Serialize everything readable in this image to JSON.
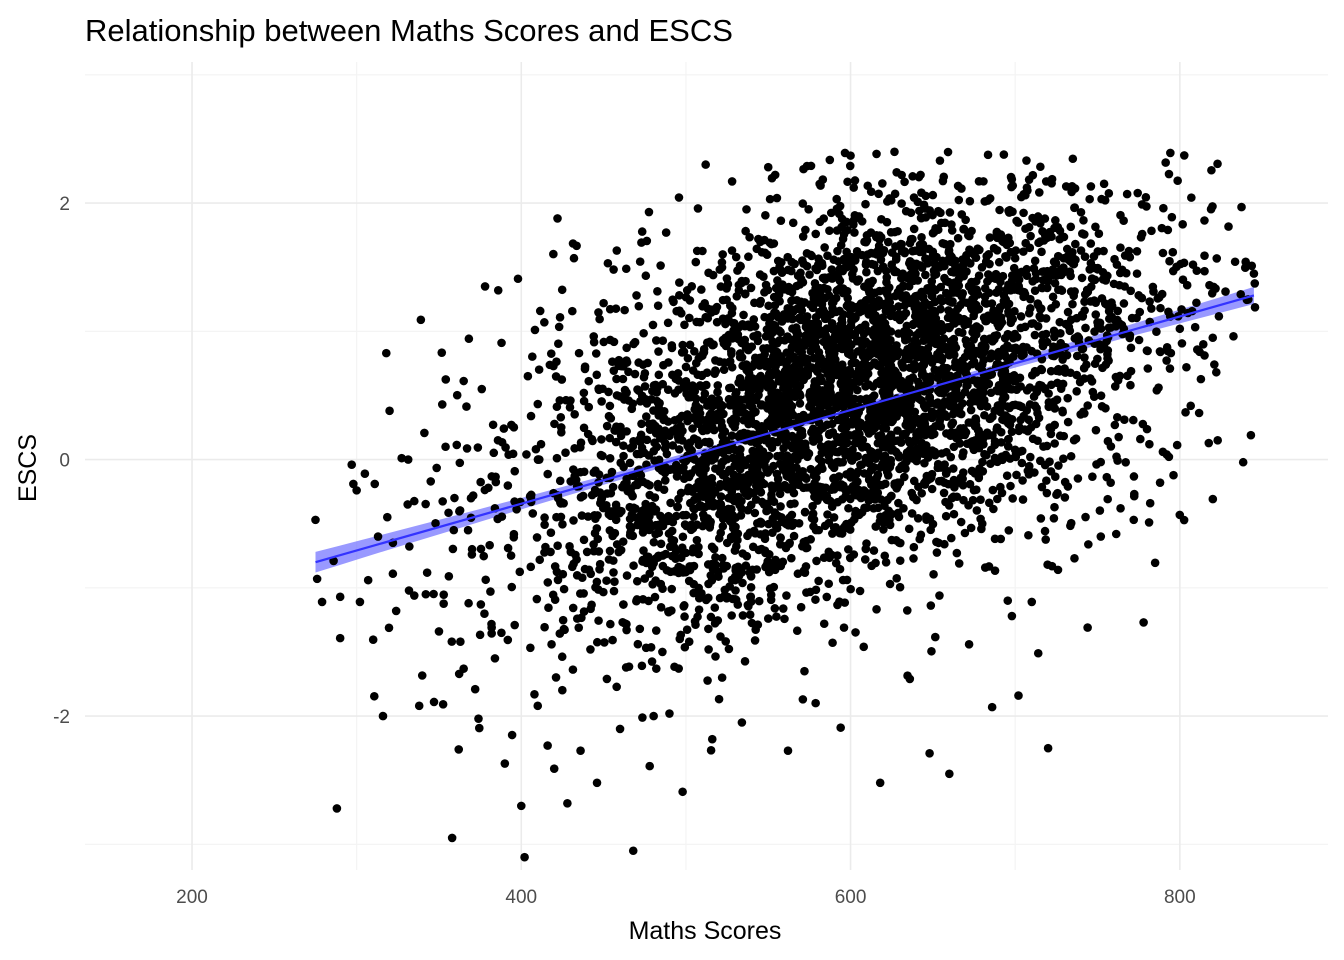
{
  "chart_data": {
    "type": "scatter",
    "title": "Relationship between Maths Scores and ESCS",
    "xlabel": "Maths Scores",
    "ylabel": "ESCS",
    "xlim": [
      135,
      890
    ],
    "ylim": [
      -3.2,
      3.1
    ],
    "x_ticks": [
      200,
      400,
      600,
      800
    ],
    "y_ticks": [
      -2,
      0,
      2
    ],
    "grid": true,
    "colors": {
      "points": "#000000",
      "trend": "#3333ff",
      "band": "#7777ff"
    },
    "trend_line": {
      "x": [
        275,
        845
      ],
      "y": [
        -0.8,
        1.28
      ],
      "method": "linear"
    },
    "series": [
      {
        "points": [
          [
            275,
            -0.47
          ],
          [
            276,
            -0.93
          ],
          [
            279,
            -1.11
          ],
          [
            286,
            -0.79
          ],
          [
            288,
            -2.72
          ],
          [
            290,
            -1.07
          ],
          [
            297,
            -0.04
          ],
          [
            298,
            -0.19
          ],
          [
            300,
            -0.24
          ],
          [
            302,
            -1.11
          ],
          [
            305,
            -0.11
          ],
          [
            307,
            -0.94
          ],
          [
            311,
            -0.19
          ],
          [
            313,
            -0.6
          ],
          [
            316,
            -2.0
          ],
          [
            318,
            0.83
          ],
          [
            320,
            0.38
          ],
          [
            322,
            -0.89
          ],
          [
            324,
            -1.18
          ],
          [
            331,
            -0.35
          ],
          [
            335,
            -1.06
          ],
          [
            338,
            -1.92
          ],
          [
            339,
            1.09
          ],
          [
            342,
            -1.05
          ],
          [
            345,
            -0.17
          ],
          [
            347,
            -1.89
          ],
          [
            350,
            -1.34
          ],
          [
            352,
            0.43
          ],
          [
            354,
            0.1
          ],
          [
            356,
            -0.91
          ],
          [
            358,
            -2.95
          ],
          [
            359,
            -0.55
          ],
          [
            362,
            -2.26
          ],
          [
            363,
            -1.42
          ],
          [
            365,
            -1.63
          ],
          [
            368,
            -1.12
          ],
          [
            370,
            -0.74
          ],
          [
            372,
            -1.79
          ],
          [
            374,
            -2.02
          ],
          [
            376,
            0.55
          ],
          [
            378,
            1.35
          ],
          [
            380,
            -0.22
          ],
          [
            382,
            -1.31
          ],
          [
            384,
            -1.55
          ],
          [
            386,
            1.32
          ],
          [
            388,
            0.91
          ],
          [
            390,
            -2.37
          ],
          [
            392,
            -0.69
          ],
          [
            394,
            0.27
          ],
          [
            396,
            -1.29
          ],
          [
            398,
            1.41
          ],
          [
            400,
            -2.7
          ],
          [
            402,
            -3.1
          ],
          [
            404,
            0.65
          ],
          [
            406,
            -0.33
          ],
          [
            408,
            -1.83
          ],
          [
            410,
            -1.92
          ],
          [
            412,
            0.12
          ],
          [
            414,
            1.07
          ],
          [
            416,
            -2.23
          ],
          [
            418,
            -0.57
          ],
          [
            420,
            -2.41
          ],
          [
            422,
            1.88
          ],
          [
            424,
            0.33
          ],
          [
            426,
            -1.01
          ],
          [
            428,
            -2.68
          ],
          [
            430,
            -0.17
          ],
          [
            432,
            1.57
          ],
          [
            434,
            -1.24
          ],
          [
            436,
            -2.27
          ],
          [
            438,
            0.52
          ],
          [
            440,
            -0.72
          ],
          [
            442,
            -1.48
          ],
          [
            444,
            0.96
          ],
          [
            446,
            -2.52
          ],
          [
            448,
            -0.34
          ],
          [
            450,
            1.22
          ],
          [
            452,
            -1.71
          ],
          [
            454,
            0.01
          ],
          [
            456,
            -0.88
          ],
          [
            458,
            1.63
          ],
          [
            460,
            -2.1
          ],
          [
            462,
            -1.13
          ],
          [
            464,
            0.22
          ],
          [
            466,
            -0.52
          ],
          [
            468,
            -3.05
          ],
          [
            470,
            1.28
          ],
          [
            472,
            -1.32
          ],
          [
            474,
            0.74
          ],
          [
            476,
            -0.04
          ],
          [
            478,
            -2.39
          ],
          [
            480,
            1.05
          ],
          [
            482,
            -1.63
          ],
          [
            484,
            0.44
          ],
          [
            486,
            -0.83
          ],
          [
            488,
            1.77
          ],
          [
            490,
            -1.98
          ],
          [
            492,
            0.11
          ],
          [
            494,
            -0.71
          ],
          [
            496,
            1.38
          ],
          [
            498,
            -2.59
          ],
          [
            500,
            0.59
          ],
          [
            502,
            -1.42
          ],
          [
            504,
            -0.25
          ],
          [
            506,
            1.54
          ],
          [
            508,
            -1.17
          ],
          [
            510,
            0.81
          ],
          [
            512,
            2.3
          ],
          [
            514,
            -0.49
          ],
          [
            516,
            -2.18
          ],
          [
            518,
            1.16
          ],
          [
            520,
            0.34
          ],
          [
            522,
            -1.7
          ],
          [
            524,
            0.95
          ],
          [
            526,
            -0.3
          ],
          [
            528,
            1.63
          ],
          [
            530,
            -0.94
          ],
          [
            532,
            0.6
          ],
          [
            534,
            -2.05
          ],
          [
            536,
            1.29
          ],
          [
            538,
            -0.12
          ],
          [
            540,
            0.88
          ],
          [
            542,
            -1.41
          ],
          [
            544,
            1.72
          ],
          [
            546,
            0.26
          ],
          [
            548,
            -0.71
          ],
          [
            550,
            2.28
          ],
          [
            552,
            0.52
          ],
          [
            554,
            -1.16
          ],
          [
            556,
            1.11
          ],
          [
            558,
            -0.45
          ],
          [
            560,
            0.93
          ],
          [
            562,
            -2.27
          ],
          [
            564,
            1.47
          ],
          [
            566,
            0.15
          ],
          [
            568,
            -0.89
          ],
          [
            570,
            1.23
          ],
          [
            572,
            -1.65
          ],
          [
            574,
            0.71
          ],
          [
            576,
            2.29
          ],
          [
            578,
            -0.29
          ],
          [
            580,
            1.04
          ],
          [
            582,
            0.36
          ],
          [
            584,
            -1.28
          ],
          [
            586,
            1.59
          ],
          [
            588,
            0.62
          ],
          [
            590,
            -0.53
          ],
          [
            592,
            1.32
          ],
          [
            594,
            -2.09
          ],
          [
            596,
            0.88
          ],
          [
            598,
            0.13
          ],
          [
            600,
            2.37
          ],
          [
            602,
            -0.74
          ],
          [
            604,
            1.19
          ],
          [
            606,
            0.47
          ],
          [
            608,
            -1.46
          ],
          [
            610,
            1.71
          ],
          [
            612,
            0.29
          ],
          [
            614,
            -0.38
          ],
          [
            616,
            1.05
          ],
          [
            618,
            -2.52
          ],
          [
            620,
            0.79
          ],
          [
            622,
            1.42
          ],
          [
            624,
            -0.97
          ],
          [
            626,
            0.58
          ],
          [
            628,
            2.24
          ],
          [
            630,
            -0.18
          ],
          [
            632,
            1.13
          ],
          [
            634,
            0.35
          ],
          [
            636,
            -1.71
          ],
          [
            638,
            1.49
          ],
          [
            640,
            0.86
          ],
          [
            642,
            -0.62
          ],
          [
            644,
            1.27
          ],
          [
            646,
            0.11
          ],
          [
            648,
            -2.29
          ],
          [
            650,
            1.62
          ],
          [
            652,
            0.43
          ],
          [
            654,
            -1.06
          ],
          [
            656,
            1.01
          ],
          [
            658,
            0.67
          ],
          [
            660,
            -2.45
          ],
          [
            662,
            1.35
          ],
          [
            664,
            0.21
          ],
          [
            666,
            -0.81
          ],
          [
            668,
            1.56
          ],
          [
            670,
            0.93
          ],
          [
            672,
            -1.44
          ],
          [
            674,
            1.18
          ],
          [
            676,
            0.32
          ],
          [
            678,
            2.17
          ],
          [
            680,
            -0.5
          ],
          [
            682,
            1.08
          ],
          [
            684,
            0.59
          ],
          [
            686,
            -1.93
          ],
          [
            688,
            1.41
          ],
          [
            690,
            0.74
          ],
          [
            692,
            -0.26
          ],
          [
            694,
            1.24
          ],
          [
            696,
            0.16
          ],
          [
            698,
            -1.22
          ],
          [
            700,
            1.57
          ],
          [
            702,
            -1.84
          ],
          [
            704,
            0.81
          ],
          [
            706,
            1.29
          ],
          [
            708,
            -0.59
          ],
          [
            710,
            1.06
          ],
          [
            712,
            0.42
          ],
          [
            714,
            -1.51
          ],
          [
            716,
            1.62
          ],
          [
            718,
            0.55
          ],
          [
            720,
            -2.25
          ],
          [
            722,
            1.18
          ],
          [
            724,
            0.27
          ],
          [
            726,
            -0.86
          ],
          [
            728,
            1.44
          ],
          [
            730,
            0.71
          ],
          [
            732,
            -0.21
          ],
          [
            734,
            1.31
          ],
          [
            736,
            -0.77
          ],
          [
            738,
            0.96
          ],
          [
            740,
            1.63
          ],
          [
            742,
            0.36
          ],
          [
            744,
            -1.31
          ],
          [
            746,
            2.13
          ],
          [
            748,
            0.49
          ],
          [
            750,
            1.07
          ],
          [
            752,
            -0.6
          ],
          [
            754,
            2.15
          ],
          [
            756,
            0.82
          ],
          [
            758,
            -0.18
          ],
          [
            760,
            1.37
          ],
          [
            762,
            0.33
          ],
          [
            764,
            -0.38
          ],
          [
            766,
            1.02
          ],
          [
            768,
            2.07
          ],
          [
            770,
            0.58
          ],
          [
            772,
            -0.47
          ],
          [
            774,
            1.45
          ],
          [
            776,
            0.16
          ],
          [
            778,
            -1.27
          ],
          [
            780,
            0.85
          ],
          [
            782,
            -0.34
          ],
          [
            784,
            1.31
          ],
          [
            786,
            0.54
          ],
          [
            788,
            -0.18
          ],
          [
            790,
            1.96
          ],
          [
            792,
            0.04
          ],
          [
            794,
            0.71
          ],
          [
            796,
            1.47
          ],
          [
            800,
            1.02
          ],
          [
            804,
            0.72
          ],
          [
            808,
            1.52
          ],
          [
            812,
            0.84
          ],
          [
            815,
            1.59
          ],
          [
            818,
            1.36
          ],
          [
            820,
            0.95
          ],
          [
            823,
            0.15
          ],
          [
            845,
            1.45
          ]
        ]
      }
    ]
  }
}
